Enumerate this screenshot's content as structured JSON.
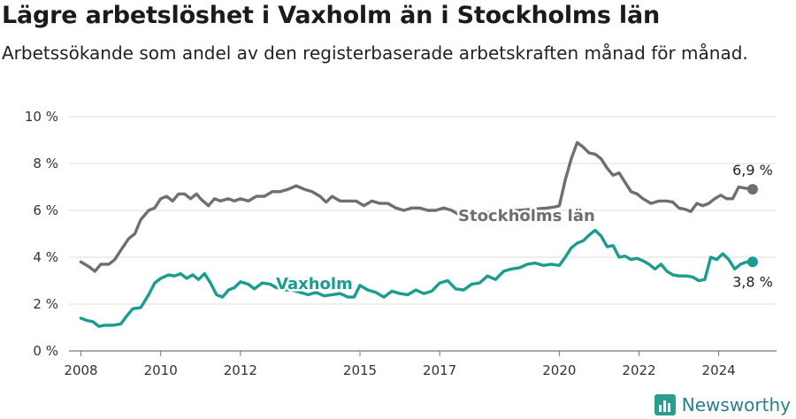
{
  "header": {
    "title": "Lägre arbetslöshet i Vaxholm än i Stockholms län",
    "subtitle": "Arbetssökande som andel av den registerbaserade arbetskraften månad för månad."
  },
  "brand": {
    "name": "Newsworthy",
    "icon": "bar-chart-icon",
    "color": "#2a9d8f"
  },
  "chart_data": {
    "type": "line",
    "title": "Lägre arbetslöshet i Vaxholm än i Stockholms län",
    "subtitle": "Arbetssökande som andel av den registerbaserade arbetskraften månad för månad.",
    "xlabel": "",
    "ylabel": "",
    "xlim": [
      2007.7,
      2025.45
    ],
    "ylim": [
      0,
      10
    ],
    "x_ticks": [
      2008,
      2010,
      2012,
      2015,
      2017,
      2020,
      2022,
      2024
    ],
    "x_tick_labels": [
      "2008",
      "2010",
      "2012",
      "2015",
      "2017",
      "2020",
      "2022",
      "2024"
    ],
    "y_ticks": [
      0,
      2,
      4,
      6,
      8,
      10
    ],
    "y_tick_labels": [
      "0 %",
      "2 %",
      "4 %",
      "6 %",
      "8 %",
      "10 %"
    ],
    "grid": "horizontal",
    "series": [
      {
        "name": "Stockholms län",
        "color": "#6e6e73",
        "end_label": "6,9 %",
        "points": [
          [
            2008.0,
            3.8
          ],
          [
            2008.2,
            3.6
          ],
          [
            2008.35,
            3.4
          ],
          [
            2008.5,
            3.7
          ],
          [
            2008.7,
            3.7
          ],
          [
            2008.85,
            3.9
          ],
          [
            2009.0,
            4.3
          ],
          [
            2009.2,
            4.8
          ],
          [
            2009.35,
            5.0
          ],
          [
            2009.5,
            5.6
          ],
          [
            2009.7,
            6.0
          ],
          [
            2009.85,
            6.1
          ],
          [
            2010.0,
            6.5
          ],
          [
            2010.15,
            6.6
          ],
          [
            2010.3,
            6.4
          ],
          [
            2010.45,
            6.7
          ],
          [
            2010.6,
            6.7
          ],
          [
            2010.75,
            6.5
          ],
          [
            2010.9,
            6.7
          ],
          [
            2011.0,
            6.5
          ],
          [
            2011.2,
            6.2
          ],
          [
            2011.35,
            6.5
          ],
          [
            2011.5,
            6.4
          ],
          [
            2011.7,
            6.5
          ],
          [
            2011.85,
            6.4
          ],
          [
            2012.0,
            6.5
          ],
          [
            2012.2,
            6.4
          ],
          [
            2012.4,
            6.6
          ],
          [
            2012.6,
            6.6
          ],
          [
            2012.8,
            6.8
          ],
          [
            2013.0,
            6.8
          ],
          [
            2013.2,
            6.9
          ],
          [
            2013.4,
            7.05
          ],
          [
            2013.6,
            6.9
          ],
          [
            2013.8,
            6.8
          ],
          [
            2014.0,
            6.6
          ],
          [
            2014.15,
            6.35
          ],
          [
            2014.3,
            6.6
          ],
          [
            2014.5,
            6.4
          ],
          [
            2014.7,
            6.4
          ],
          [
            2014.9,
            6.4
          ],
          [
            2015.1,
            6.2
          ],
          [
            2015.3,
            6.4
          ],
          [
            2015.5,
            6.3
          ],
          [
            2015.7,
            6.3
          ],
          [
            2015.9,
            6.1
          ],
          [
            2016.1,
            6.0
          ],
          [
            2016.3,
            6.1
          ],
          [
            2016.5,
            6.1
          ],
          [
            2016.7,
            6.0
          ],
          [
            2016.9,
            6.0
          ],
          [
            2017.1,
            6.1
          ],
          [
            2017.3,
            6.0
          ],
          [
            2017.5,
            5.8
          ],
          [
            2019.7,
            6.1
          ],
          [
            2019.9,
            6.15
          ],
          [
            2020.0,
            6.2
          ],
          [
            2020.15,
            7.3
          ],
          [
            2020.3,
            8.2
          ],
          [
            2020.45,
            8.9
          ],
          [
            2020.6,
            8.7
          ],
          [
            2020.75,
            8.45
          ],
          [
            2020.9,
            8.4
          ],
          [
            2021.05,
            8.2
          ],
          [
            2021.2,
            7.8
          ],
          [
            2021.35,
            7.5
          ],
          [
            2021.5,
            7.6
          ],
          [
            2021.65,
            7.2
          ],
          [
            2021.8,
            6.8
          ],
          [
            2021.95,
            6.7
          ],
          [
            2022.1,
            6.5
          ],
          [
            2022.3,
            6.3
          ],
          [
            2022.5,
            6.4
          ],
          [
            2022.7,
            6.4
          ],
          [
            2022.85,
            6.35
          ],
          [
            2023.0,
            6.1
          ],
          [
            2023.15,
            6.05
          ],
          [
            2023.3,
            5.95
          ],
          [
            2023.45,
            6.3
          ],
          [
            2023.6,
            6.2
          ],
          [
            2023.75,
            6.3
          ],
          [
            2023.9,
            6.5
          ],
          [
            2024.05,
            6.65
          ],
          [
            2024.2,
            6.5
          ],
          [
            2024.35,
            6.5
          ],
          [
            2024.5,
            7.0
          ],
          [
            2024.65,
            6.95
          ],
          [
            2024.85,
            6.9
          ]
        ]
      },
      {
        "name": "Vaxholm",
        "color": "#1b9c8f",
        "end_label": "3,8 %",
        "points": [
          [
            2008.0,
            1.4
          ],
          [
            2008.15,
            1.3
          ],
          [
            2008.3,
            1.25
          ],
          [
            2008.45,
            1.05
          ],
          [
            2008.6,
            1.1
          ],
          [
            2008.8,
            1.1
          ],
          [
            2009.0,
            1.15
          ],
          [
            2009.15,
            1.5
          ],
          [
            2009.3,
            1.8
          ],
          [
            2009.5,
            1.85
          ],
          [
            2009.7,
            2.4
          ],
          [
            2009.85,
            2.9
          ],
          [
            2010.0,
            3.1
          ],
          [
            2010.2,
            3.25
          ],
          [
            2010.35,
            3.2
          ],
          [
            2010.5,
            3.3
          ],
          [
            2010.65,
            3.1
          ],
          [
            2010.8,
            3.25
          ],
          [
            2010.95,
            3.05
          ],
          [
            2011.1,
            3.3
          ],
          [
            2011.25,
            2.9
          ],
          [
            2011.4,
            2.4
          ],
          [
            2011.55,
            2.3
          ],
          [
            2011.7,
            2.6
          ],
          [
            2011.85,
            2.7
          ],
          [
            2012.0,
            2.95
          ],
          [
            2012.2,
            2.85
          ],
          [
            2012.35,
            2.65
          ],
          [
            2012.55,
            2.9
          ],
          [
            2012.75,
            2.85
          ],
          [
            2012.9,
            2.7
          ],
          [
            2013.1,
            2.6
          ],
          [
            2013.3,
            2.6
          ],
          [
            2013.5,
            2.5
          ],
          [
            2013.7,
            2.4
          ],
          [
            2013.9,
            2.5
          ],
          [
            2014.1,
            2.35
          ],
          [
            2014.3,
            2.4
          ],
          [
            2014.5,
            2.45
          ],
          [
            2014.7,
            2.3
          ],
          [
            2014.85,
            2.3
          ],
          [
            2015.0,
            2.8
          ],
          [
            2015.2,
            2.6
          ],
          [
            2015.4,
            2.5
          ],
          [
            2015.6,
            2.3
          ],
          [
            2015.8,
            2.55
          ],
          [
            2016.0,
            2.45
          ],
          [
            2016.2,
            2.4
          ],
          [
            2016.4,
            2.6
          ],
          [
            2016.6,
            2.45
          ],
          [
            2016.8,
            2.55
          ],
          [
            2017.0,
            2.9
          ],
          [
            2017.2,
            3.0
          ],
          [
            2017.4,
            2.65
          ],
          [
            2017.6,
            2.6
          ],
          [
            2017.8,
            2.85
          ],
          [
            2018.0,
            2.9
          ],
          [
            2018.2,
            3.2
          ],
          [
            2018.4,
            3.05
          ],
          [
            2018.6,
            3.4
          ],
          [
            2018.8,
            3.5
          ],
          [
            2019.0,
            3.55
          ],
          [
            2019.2,
            3.7
          ],
          [
            2019.4,
            3.75
          ],
          [
            2019.6,
            3.65
          ],
          [
            2019.8,
            3.7
          ],
          [
            2020.0,
            3.65
          ],
          [
            2020.15,
            4.0
          ],
          [
            2020.3,
            4.4
          ],
          [
            2020.45,
            4.6
          ],
          [
            2020.6,
            4.7
          ],
          [
            2020.75,
            4.95
          ],
          [
            2020.9,
            5.15
          ],
          [
            2021.05,
            4.9
          ],
          [
            2021.2,
            4.45
          ],
          [
            2021.35,
            4.5
          ],
          [
            2021.5,
            4.0
          ],
          [
            2021.65,
            4.05
          ],
          [
            2021.8,
            3.9
          ],
          [
            2021.95,
            3.95
          ],
          [
            2022.1,
            3.85
          ],
          [
            2022.25,
            3.7
          ],
          [
            2022.4,
            3.5
          ],
          [
            2022.55,
            3.7
          ],
          [
            2022.7,
            3.4
          ],
          [
            2022.85,
            3.25
          ],
          [
            2023.0,
            3.2
          ],
          [
            2023.2,
            3.2
          ],
          [
            2023.35,
            3.15
          ],
          [
            2023.5,
            3.0
          ],
          [
            2023.65,
            3.05
          ],
          [
            2023.8,
            4.0
          ],
          [
            2023.95,
            3.9
          ],
          [
            2024.1,
            4.15
          ],
          [
            2024.25,
            3.9
          ],
          [
            2024.4,
            3.5
          ],
          [
            2024.55,
            3.7
          ],
          [
            2024.7,
            3.8
          ],
          [
            2024.85,
            3.8
          ]
        ]
      }
    ]
  }
}
